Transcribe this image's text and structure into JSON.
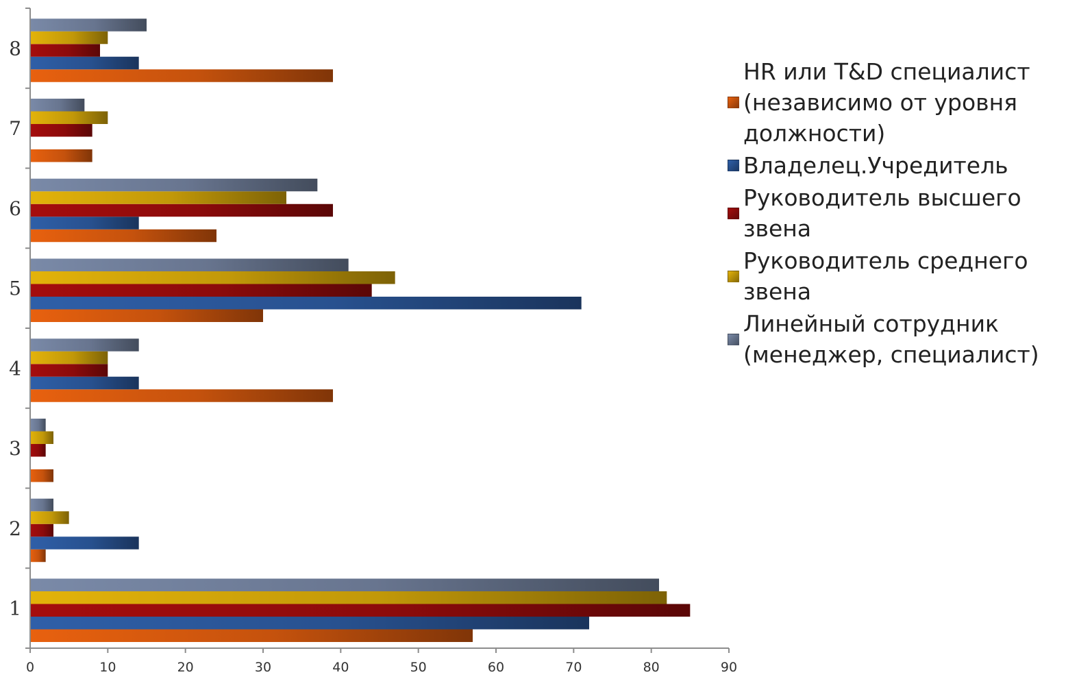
{
  "chart_data": {
    "type": "bar",
    "orientation": "horizontal",
    "title": "",
    "xlabel": "",
    "ylabel": "",
    "xlim": [
      0,
      90
    ],
    "x_ticks": [
      "0",
      "10",
      "20",
      "30",
      "40",
      "50",
      "60",
      "70",
      "80",
      "90"
    ],
    "categories": [
      "1",
      "2",
      "3",
      "4",
      "5",
      "6",
      "7",
      "8"
    ],
    "legend_position": "right",
    "grid": false,
    "series": [
      {
        "name": "HR или T&D специалист (независимо от уровня должности)",
        "color": "#e8610f",
        "values": [
          57,
          2,
          3,
          39,
          30,
          24,
          8,
          39
        ]
      },
      {
        "name": "Владелец.Учредитель",
        "color": "#2f5fa8",
        "values": [
          72,
          14,
          null,
          14,
          71,
          14,
          null,
          14
        ]
      },
      {
        "name": "Руководитель высшего звена",
        "color": "#a50d0d",
        "values": [
          85,
          3,
          2,
          10,
          44,
          39,
          8,
          9
        ]
      },
      {
        "name": "Руководитель среднего звена",
        "color": "#e3b30a",
        "values": [
          82,
          5,
          3,
          10,
          47,
          33,
          10,
          10
        ]
      },
      {
        "name": "Линейный сотрудник (менеджер, специалист)",
        "color": "#7a8aa8",
        "values": [
          81,
          3,
          2,
          14,
          41,
          37,
          7,
          15
        ]
      }
    ]
  }
}
